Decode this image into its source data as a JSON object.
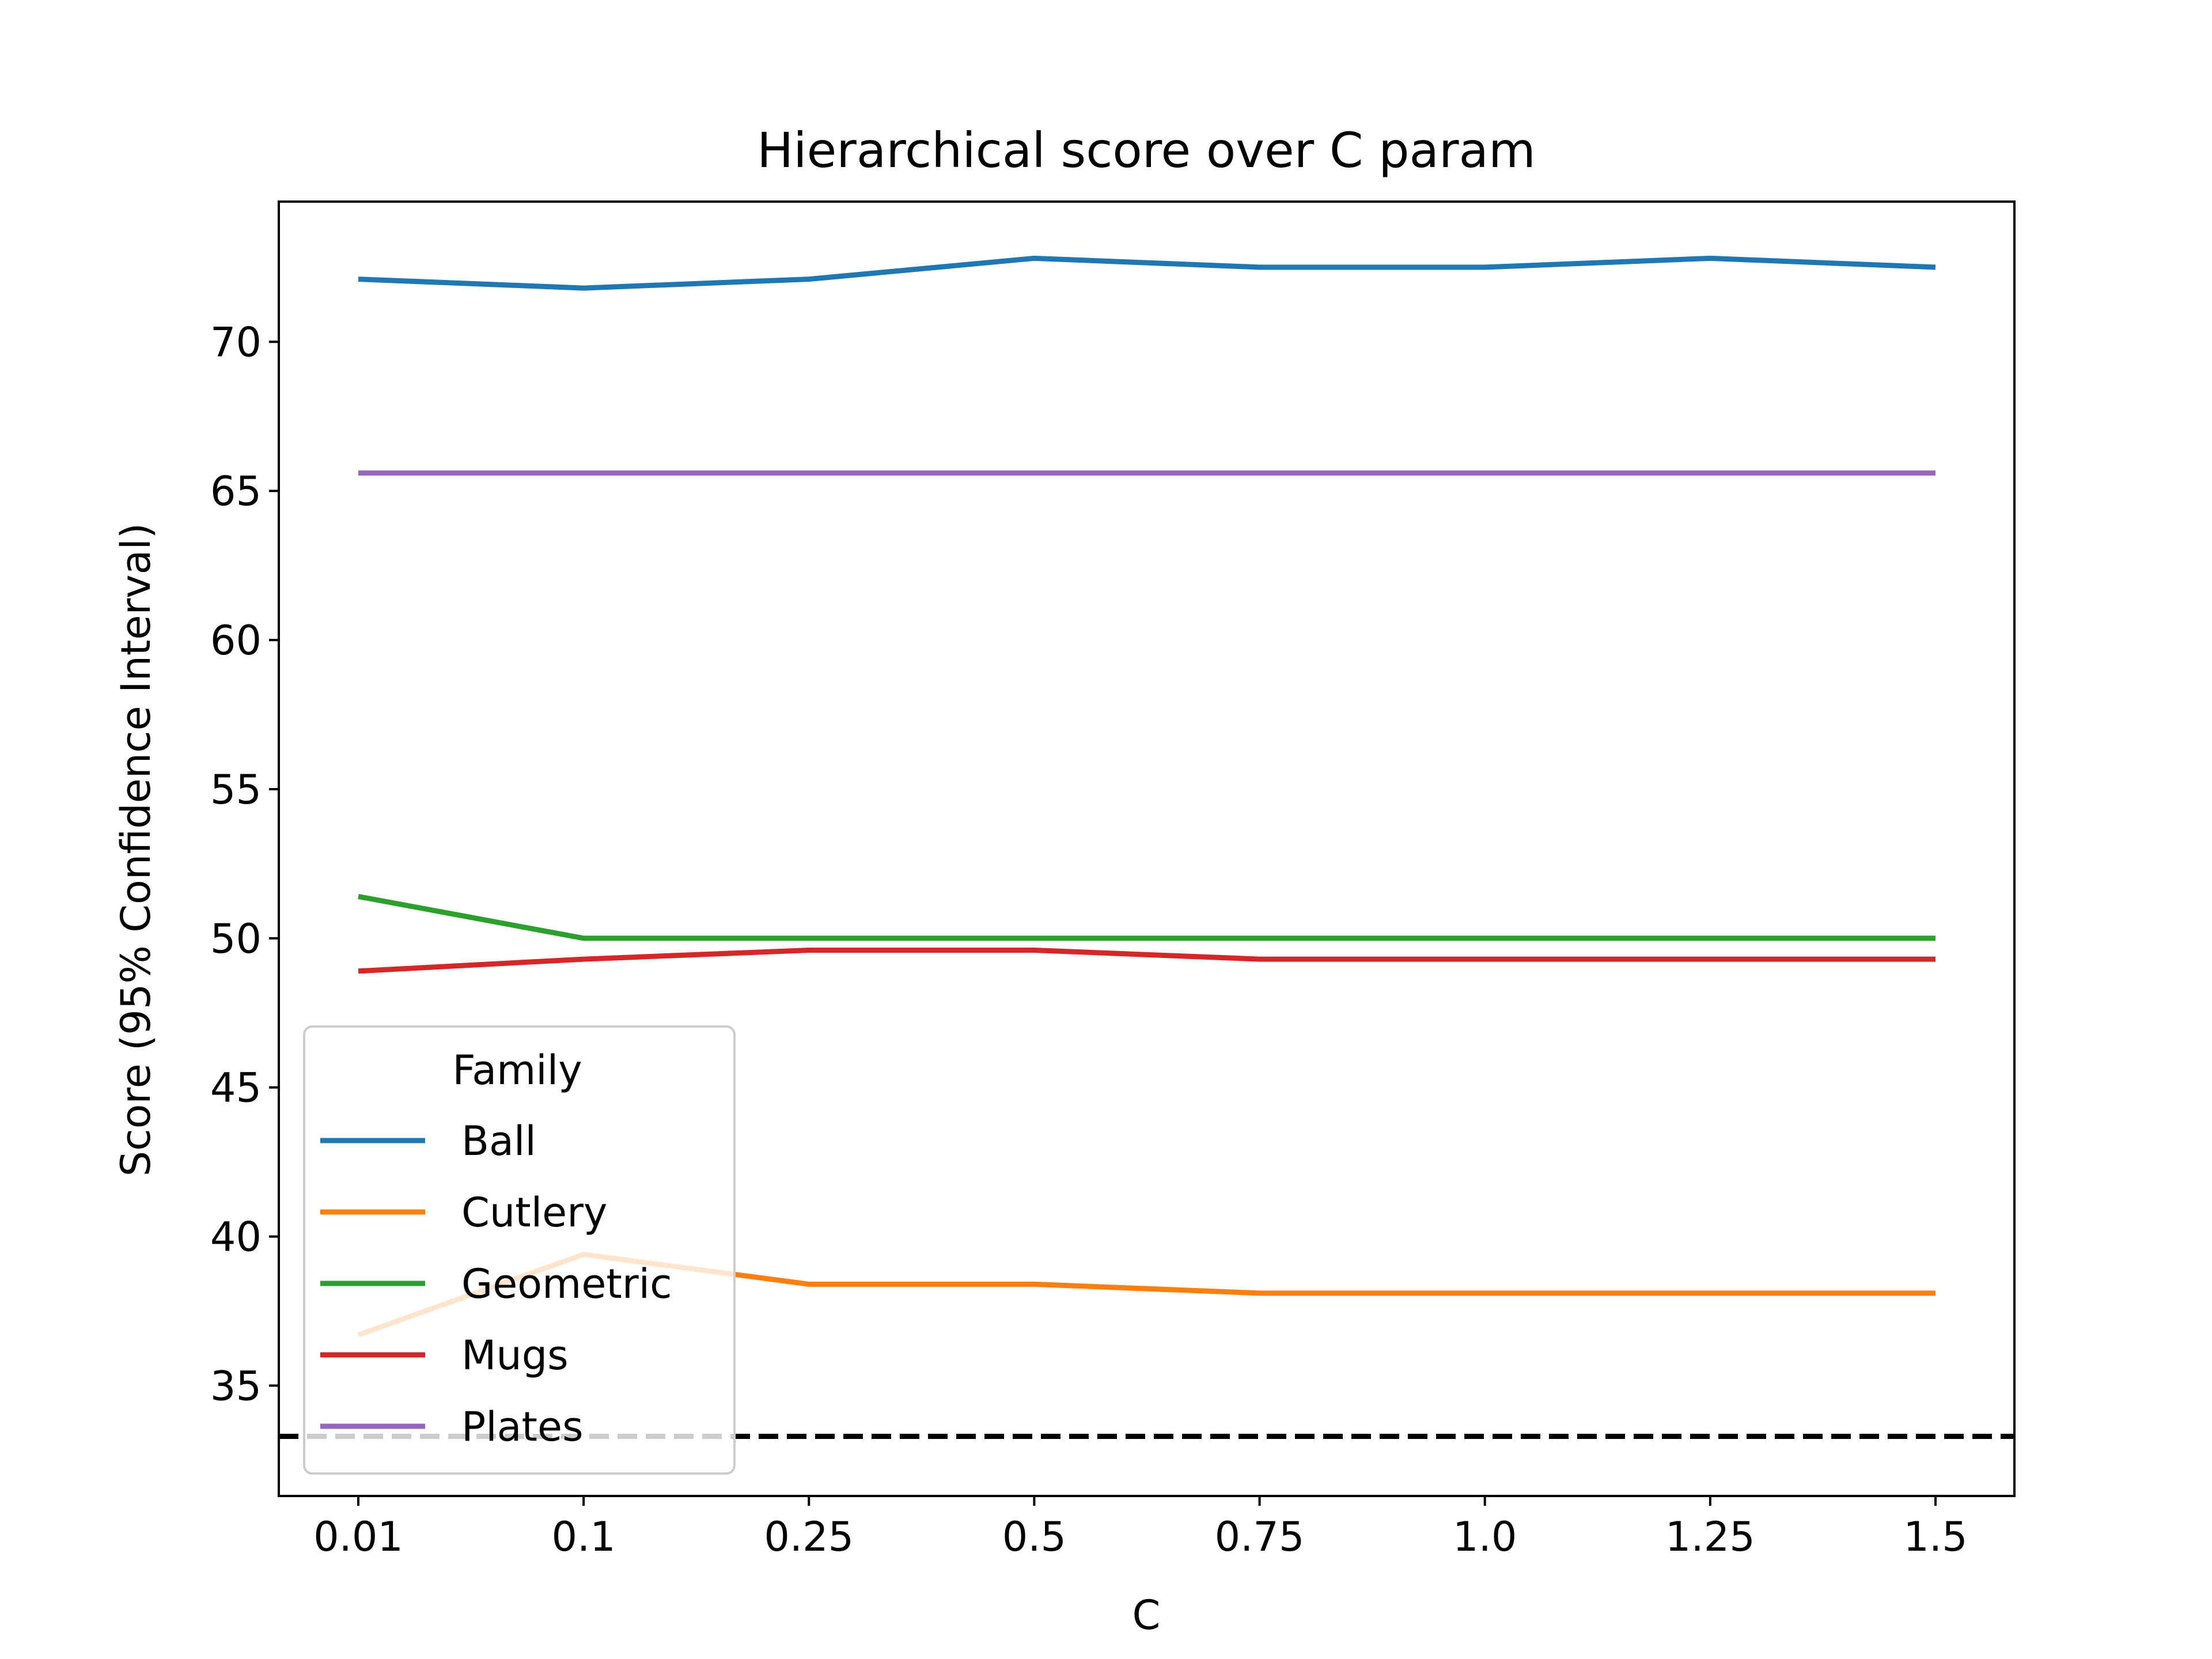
{
  "chart_data": {
    "type": "line",
    "title": "Hierarchical score over C param",
    "xlabel": "C",
    "ylabel": "Score (95% Confidence Interval)",
    "categories": [
      "0.01",
      "0.1",
      "0.25",
      "0.5",
      "0.75",
      "1.0",
      "1.25",
      "1.5"
    ],
    "ylim": [
      31.3,
      74.7
    ],
    "yticks": [
      35,
      40,
      45,
      50,
      55,
      60,
      65,
      70
    ],
    "grid": false,
    "legend": {
      "title": "Family",
      "placement": "lower-left"
    },
    "series": [
      {
        "name": "Ball",
        "color": "#1f77b4",
        "values": [
          72.1,
          71.8,
          72.1,
          72.8,
          72.5,
          72.5,
          72.8,
          72.5
        ]
      },
      {
        "name": "Cutlery",
        "color": "#ff7f0e",
        "values": [
          36.7,
          39.4,
          38.4,
          38.4,
          38.1,
          38.1,
          38.1,
          38.1
        ]
      },
      {
        "name": "Geometric",
        "color": "#2ca02c",
        "values": [
          51.4,
          50.0,
          50.0,
          50.0,
          50.0,
          50.0,
          50.0,
          50.0
        ]
      },
      {
        "name": "Mugs",
        "color": "#d62728",
        "values": [
          48.9,
          49.3,
          49.6,
          49.6,
          49.3,
          49.3,
          49.3,
          49.3
        ]
      },
      {
        "name": "Plates",
        "color": "#9467bd",
        "values": [
          65.6,
          65.6,
          65.6,
          65.6,
          65.6,
          65.6,
          65.6,
          65.6
        ]
      }
    ],
    "reference_line": {
      "y": 33.3,
      "style": "dashed",
      "color": "#000000"
    }
  }
}
